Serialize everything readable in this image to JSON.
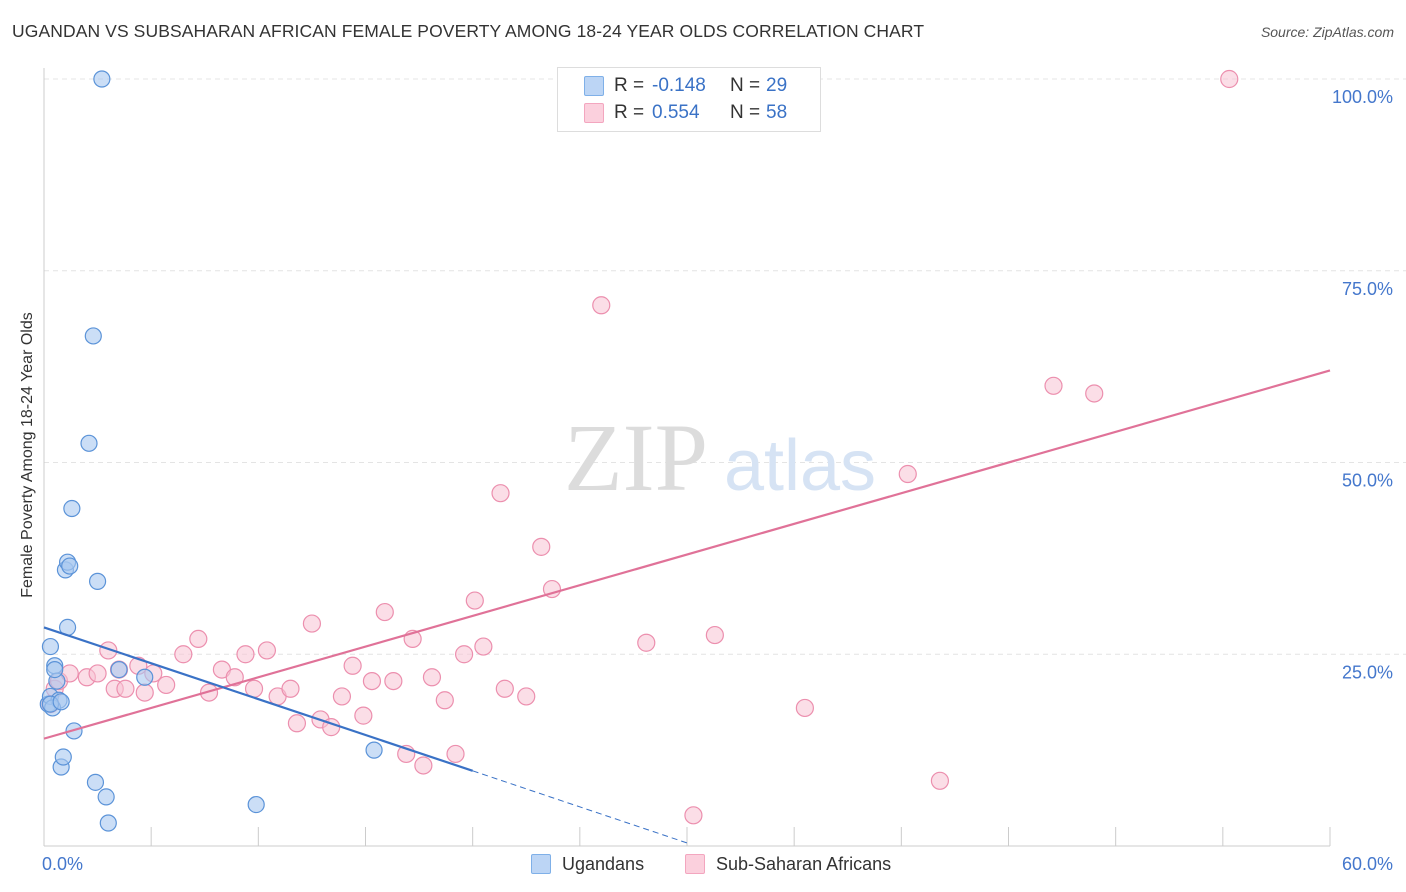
{
  "header": {
    "title": "UGANDAN VS SUBSAHARAN AFRICAN FEMALE POVERTY AMONG 18-24 YEAR OLDS CORRELATION CHART",
    "source": "Source: ZipAtlas.com"
  },
  "watermark": {
    "zip": "ZIP",
    "atlas": "atlas"
  },
  "legend": {
    "rows": [
      {
        "r_label": "R =",
        "r_value": "-0.148",
        "n_label": "N =",
        "n_value": "29",
        "color": "#7fb0e8"
      },
      {
        "r_label": "R =",
        "r_value": "0.554",
        "n_label": "N =",
        "n_value": "58",
        "color": "#f3a6bf"
      }
    ],
    "bottom": [
      {
        "label": "Ugandans",
        "color": "#7fb0e8"
      },
      {
        "label": "Sub-Saharan Africans",
        "color": "#f3a6bf"
      }
    ]
  },
  "colors": {
    "ugandan_fill": "#a9c8f0",
    "ugandan_stroke": "#5b93d8",
    "ugandan_line": "#3a72c6",
    "ssa_fill": "#f8c3d3",
    "ssa_stroke": "#ec8fae",
    "ssa_line": "#e07298",
    "tick_label": "#4477cc"
  },
  "chart_data": {
    "type": "scatter",
    "title": "UGANDAN VS SUBSAHARAN AFRICAN FEMALE POVERTY AMONG 18-24 YEAR OLDS CORRELATION CHART",
    "xlabel": "",
    "ylabel": "Female Poverty Among 18-24 Year Olds",
    "xlim": [
      0,
      60
    ],
    "ylim": [
      0,
      100
    ],
    "x_tick_labels": [
      {
        "value": 0,
        "label": "0.0%"
      },
      {
        "value": 60,
        "label": "60.0%"
      }
    ],
    "y_tick_labels": [
      {
        "value": 25,
        "label": "25.0%"
      },
      {
        "value": 50,
        "label": "50.0%"
      },
      {
        "value": 75,
        "label": "75.0%"
      },
      {
        "value": 100,
        "label": "100.0%"
      }
    ],
    "grid": true,
    "legend_position": "top-center",
    "series": [
      {
        "name": "Ugandans",
        "points": [
          [
            0.2,
            18.5
          ],
          [
            0.3,
            26.0
          ],
          [
            0.3,
            19.5
          ],
          [
            0.5,
            23.5
          ],
          [
            0.7,
            19.0
          ],
          [
            0.8,
            10.3
          ],
          [
            0.9,
            11.6
          ],
          [
            1.0,
            36.0
          ],
          [
            1.1,
            37.0
          ],
          [
            1.1,
            28.5
          ],
          [
            1.2,
            36.5
          ],
          [
            1.3,
            44.0
          ],
          [
            1.4,
            15.0
          ],
          [
            2.1,
            52.5
          ],
          [
            2.3,
            66.5
          ],
          [
            2.4,
            8.3
          ],
          [
            2.5,
            34.5
          ],
          [
            2.7,
            100.0
          ],
          [
            2.9,
            6.4
          ],
          [
            3.0,
            3.0
          ],
          [
            3.5,
            23.0
          ],
          [
            4.7,
            22.0
          ],
          [
            9.9,
            5.4
          ],
          [
            15.4,
            12.5
          ],
          [
            0.4,
            18.0
          ],
          [
            0.6,
            21.5
          ],
          [
            0.3,
            18.5
          ],
          [
            0.5,
            23.0
          ],
          [
            0.8,
            18.8
          ]
        ],
        "trend": {
          "x": [
            0,
            20
          ],
          "y": [
            28.5,
            9.8
          ]
        },
        "trend_extension": {
          "x": [
            20,
            30
          ],
          "y": [
            9.8,
            0.4
          ]
        }
      },
      {
        "name": "Sub-Saharan Africans",
        "points": [
          [
            0.3,
            18.5
          ],
          [
            0.5,
            20.5
          ],
          [
            0.7,
            21.5
          ],
          [
            1.2,
            22.5
          ],
          [
            2.0,
            22.0
          ],
          [
            2.5,
            22.5
          ],
          [
            3.0,
            25.5
          ],
          [
            3.3,
            20.5
          ],
          [
            3.8,
            20.5
          ],
          [
            4.4,
            23.5
          ],
          [
            4.7,
            20.0
          ],
          [
            5.1,
            22.5
          ],
          [
            5.7,
            21.0
          ],
          [
            6.5,
            25.0
          ],
          [
            7.2,
            27.0
          ],
          [
            7.7,
            20.0
          ],
          [
            8.3,
            23.0
          ],
          [
            8.9,
            22.0
          ],
          [
            9.4,
            25.0
          ],
          [
            9.8,
            20.5
          ],
          [
            10.4,
            25.5
          ],
          [
            10.9,
            19.5
          ],
          [
            11.5,
            20.5
          ],
          [
            11.8,
            16.0
          ],
          [
            12.5,
            29.0
          ],
          [
            12.9,
            16.5
          ],
          [
            13.4,
            15.5
          ],
          [
            13.9,
            19.5
          ],
          [
            14.4,
            23.5
          ],
          [
            14.9,
            17.0
          ],
          [
            15.3,
            21.5
          ],
          [
            15.9,
            30.5
          ],
          [
            16.3,
            21.5
          ],
          [
            16.9,
            12.0
          ],
          [
            17.2,
            27.0
          ],
          [
            17.7,
            10.5
          ],
          [
            18.1,
            22.0
          ],
          [
            18.7,
            19.0
          ],
          [
            19.2,
            12.0
          ],
          [
            19.6,
            25.0
          ],
          [
            20.1,
            32.0
          ],
          [
            20.5,
            26.0
          ],
          [
            21.3,
            46.0
          ],
          [
            21.5,
            20.5
          ],
          [
            22.5,
            19.5
          ],
          [
            23.2,
            39.0
          ],
          [
            23.7,
            33.5
          ],
          [
            26.0,
            70.5
          ],
          [
            28.1,
            26.5
          ],
          [
            30.3,
            4.0
          ],
          [
            31.3,
            27.5
          ],
          [
            35.5,
            18.0
          ],
          [
            40.3,
            48.5
          ],
          [
            41.8,
            8.5
          ],
          [
            47.1,
            60.0
          ],
          [
            49.0,
            59.0
          ],
          [
            55.3,
            100.0
          ],
          [
            3.5,
            23.0
          ]
        ],
        "trend": {
          "x": [
            0,
            60
          ],
          "y": [
            14.0,
            62.0
          ]
        }
      }
    ]
  }
}
